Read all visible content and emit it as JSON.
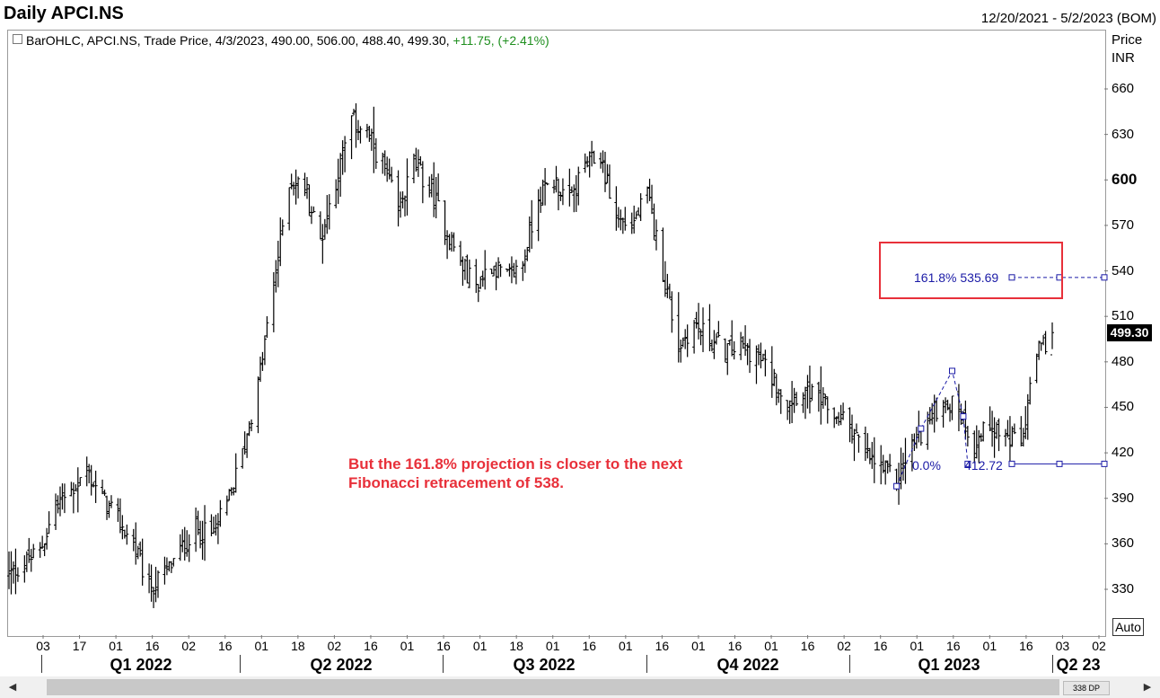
{
  "header": {
    "title": "Daily APCI.NS",
    "date_range": "12/20/2021 - 5/2/2023 (BOM)"
  },
  "info_line": {
    "text": "BarOHLC, APCI.NS, Trade Price, 4/3/2023, 490.00, 506.00, 488.40, 499.30,",
    "change": "+11.75, (+2.41%)"
  },
  "axis": {
    "price_title_1": "Price",
    "price_title_2": "INR",
    "auto_label": "Auto",
    "last_price_label": "499.30"
  },
  "annotation": {
    "line1": "But the 161.8% projection is closer to the next",
    "line2": "Fibonacci retracement of 538."
  },
  "fib": {
    "level_161": "161.8% 535.69",
    "level_0_pct": "0.0%",
    "level_0_val": "412.72"
  },
  "scrollbar": {
    "counter": "338 DP"
  },
  "colors": {
    "bars": "#000000",
    "fib": "#1a1aa6",
    "annotation": "#e8303a",
    "change": "#1f8f1f"
  },
  "chart_data": {
    "type": "bar",
    "style": "OHLC",
    "title": "Daily APCI.NS",
    "ylabel": "Price INR",
    "ylim": [
      315,
      690
    ],
    "yticks": [
      330,
      360,
      390,
      420,
      450,
      480,
      510,
      540,
      570,
      600,
      630,
      660
    ],
    "x_ticks": [
      "03",
      "17",
      "01",
      "16",
      "02",
      "16",
      "01",
      "18",
      "02",
      "16",
      "01",
      "16",
      "01",
      "18",
      "01",
      "16",
      "01",
      "16",
      "01",
      "16",
      "01",
      "16",
      "02",
      "16",
      "01",
      "16",
      "01",
      "16",
      "03",
      "02"
    ],
    "quarters": [
      "Q1 2022",
      "Q2 2022",
      "Q3 2022",
      "Q4 2022",
      "Q1 2023",
      "Q2 23"
    ],
    "grid": false,
    "last": {
      "date": "4/3/2023",
      "open": 490.0,
      "high": 506.0,
      "low": 488.4,
      "close": 499.3
    },
    "close_series_approx": [
      {
        "x": "2021-12-20",
        "y": 340
      },
      {
        "x": "2022-01-03",
        "y": 355
      },
      {
        "x": "2022-01-10",
        "y": 385
      },
      {
        "x": "2022-01-17",
        "y": 395
      },
      {
        "x": "2022-01-24",
        "y": 408
      },
      {
        "x": "2022-01-31",
        "y": 390
      },
      {
        "x": "2022-02-07",
        "y": 375
      },
      {
        "x": "2022-02-14",
        "y": 360
      },
      {
        "x": "2022-02-21",
        "y": 330
      },
      {
        "x": "2022-02-28",
        "y": 340
      },
      {
        "x": "2022-03-07",
        "y": 355
      },
      {
        "x": "2022-03-14",
        "y": 370
      },
      {
        "x": "2022-03-21",
        "y": 365
      },
      {
        "x": "2022-03-28",
        "y": 385
      },
      {
        "x": "2022-04-04",
        "y": 420
      },
      {
        "x": "2022-04-11",
        "y": 465
      },
      {
        "x": "2022-04-18",
        "y": 530
      },
      {
        "x": "2022-04-25",
        "y": 600
      },
      {
        "x": "2022-05-02",
        "y": 595
      },
      {
        "x": "2022-05-09",
        "y": 560
      },
      {
        "x": "2022-05-16",
        "y": 600
      },
      {
        "x": "2022-05-23",
        "y": 640
      },
      {
        "x": "2022-05-30",
        "y": 630
      },
      {
        "x": "2022-06-06",
        "y": 610
      },
      {
        "x": "2022-06-13",
        "y": 580
      },
      {
        "x": "2022-06-20",
        "y": 610
      },
      {
        "x": "2022-06-27",
        "y": 595
      },
      {
        "x": "2022-07-04",
        "y": 570
      },
      {
        "x": "2022-07-11",
        "y": 545
      },
      {
        "x": "2022-07-18",
        "y": 530
      },
      {
        "x": "2022-07-25",
        "y": 545
      },
      {
        "x": "2022-08-01",
        "y": 535
      },
      {
        "x": "2022-08-08",
        "y": 545
      },
      {
        "x": "2022-08-15",
        "y": 590
      },
      {
        "x": "2022-08-22",
        "y": 600
      },
      {
        "x": "2022-08-29",
        "y": 585
      },
      {
        "x": "2022-09-05",
        "y": 610
      },
      {
        "x": "2022-09-12",
        "y": 615
      },
      {
        "x": "2022-09-19",
        "y": 575
      },
      {
        "x": "2022-09-26",
        "y": 570
      },
      {
        "x": "2022-10-03",
        "y": 590
      },
      {
        "x": "2022-10-10",
        "y": 540
      },
      {
        "x": "2022-10-17",
        "y": 490
      },
      {
        "x": "2022-10-24",
        "y": 505
      },
      {
        "x": "2022-10-31",
        "y": 495
      },
      {
        "x": "2022-11-07",
        "y": 488
      },
      {
        "x": "2022-11-14",
        "y": 490
      },
      {
        "x": "2022-11-21",
        "y": 485
      },
      {
        "x": "2022-11-28",
        "y": 470
      },
      {
        "x": "2022-12-05",
        "y": 455
      },
      {
        "x": "2022-12-12",
        "y": 462
      },
      {
        "x": "2022-12-19",
        "y": 455
      },
      {
        "x": "2022-12-26",
        "y": 445
      },
      {
        "x": "2023-01-02",
        "y": 440
      },
      {
        "x": "2023-01-09",
        "y": 418
      },
      {
        "x": "2023-01-16",
        "y": 410
      },
      {
        "x": "2023-01-23",
        "y": 402
      },
      {
        "x": "2023-01-30",
        "y": 425
      },
      {
        "x": "2023-02-06",
        "y": 440
      },
      {
        "x": "2023-02-13",
        "y": 455
      },
      {
        "x": "2023-02-20",
        "y": 450
      },
      {
        "x": "2023-02-27",
        "y": 425
      },
      {
        "x": "2023-03-06",
        "y": 440
      },
      {
        "x": "2023-03-13",
        "y": 430
      },
      {
        "x": "2023-03-20",
        "y": 425
      },
      {
        "x": "2023-03-27",
        "y": 485
      },
      {
        "x": "2023-04-03",
        "y": 499.3
      }
    ],
    "fibonacci_projection": {
      "points": [
        {
          "x": "2023-01-23",
          "y": 398
        },
        {
          "x": "2023-02-03",
          "y": 436
        },
        {
          "x": "2023-02-17",
          "y": 474
        },
        {
          "x": "2023-02-22",
          "y": 444
        },
        {
          "x": "2023-02-24",
          "y": 412.72
        }
      ],
      "levels": [
        {
          "label": "0.0%",
          "value": 412.72
        },
        {
          "label": "161.8%",
          "value": 535.69
        }
      ]
    }
  }
}
